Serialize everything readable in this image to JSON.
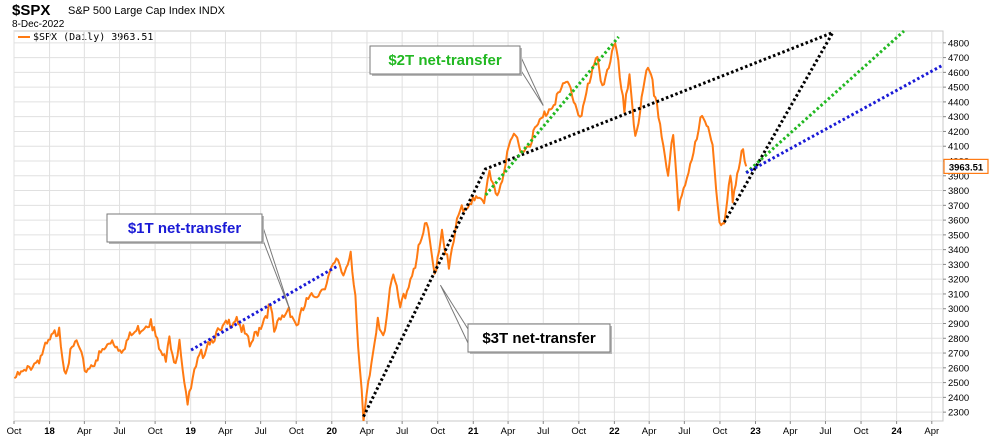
{
  "header": {
    "symbol": "$SPX",
    "name": "S&P 500 Large Cap Index",
    "exchange": "INDX",
    "date": "8-Dec-2022"
  },
  "legend": {
    "label": "$SPX (Daily) 3963.51",
    "color": "#ff7a12"
  },
  "last_value_label": "3963.51",
  "colors": {
    "price": "#ff7a12",
    "one_t": "#1a1ad6",
    "two_t": "#22b822",
    "three_t": "#000000",
    "grid": "#e0e0e0",
    "label_border": "#888888"
  },
  "chart_data": {
    "type": "line",
    "title": "",
    "xlabel": "",
    "ylabel": "",
    "x_range": [
      "2017-10-01",
      "2024-04-30"
    ],
    "ylim": [
      2240,
      4880
    ],
    "y_ticks": [
      2300,
      2400,
      2500,
      2600,
      2700,
      2800,
      2900,
      3000,
      3100,
      3200,
      3300,
      3400,
      3500,
      3600,
      3700,
      3800,
      3900,
      4000,
      4100,
      4200,
      4300,
      4400,
      4500,
      4600,
      4700,
      4800
    ],
    "x_ticks": [
      {
        "label": "Oct",
        "date": "2017-10-01",
        "bold": false
      },
      {
        "label": "18",
        "date": "2018-01-01",
        "bold": true
      },
      {
        "label": "Apr",
        "date": "2018-04-01",
        "bold": false
      },
      {
        "label": "Jul",
        "date": "2018-07-01",
        "bold": false
      },
      {
        "label": "Oct",
        "date": "2018-10-01",
        "bold": false
      },
      {
        "label": "19",
        "date": "2019-01-01",
        "bold": true
      },
      {
        "label": "Apr",
        "date": "2019-04-01",
        "bold": false
      },
      {
        "label": "Jul",
        "date": "2019-07-01",
        "bold": false
      },
      {
        "label": "Oct",
        "date": "2019-10-01",
        "bold": false
      },
      {
        "label": "20",
        "date": "2020-01-01",
        "bold": true
      },
      {
        "label": "Apr",
        "date": "2020-04-01",
        "bold": false
      },
      {
        "label": "Jul",
        "date": "2020-07-01",
        "bold": false
      },
      {
        "label": "Oct",
        "date": "2020-10-01",
        "bold": false
      },
      {
        "label": "21",
        "date": "2021-01-01",
        "bold": true
      },
      {
        "label": "Apr",
        "date": "2021-04-01",
        "bold": false
      },
      {
        "label": "Jul",
        "date": "2021-07-01",
        "bold": false
      },
      {
        "label": "Oct",
        "date": "2021-10-01",
        "bold": false
      },
      {
        "label": "22",
        "date": "2022-01-01",
        "bold": true
      },
      {
        "label": "Apr",
        "date": "2022-04-01",
        "bold": false
      },
      {
        "label": "Jul",
        "date": "2022-07-01",
        "bold": false
      },
      {
        "label": "Oct",
        "date": "2022-10-01",
        "bold": false
      },
      {
        "label": "23",
        "date": "2023-01-01",
        "bold": true
      },
      {
        "label": "Apr",
        "date": "2023-04-01",
        "bold": false
      },
      {
        "label": "Jul",
        "date": "2023-07-01",
        "bold": false
      },
      {
        "label": "Oct",
        "date": "2023-10-01",
        "bold": false
      },
      {
        "label": "24",
        "date": "2024-01-01",
        "bold": true
      },
      {
        "label": "Apr",
        "date": "2024-04-01",
        "bold": false
      }
    ],
    "grid": true,
    "legend_position": "top-left",
    "series": [
      {
        "name": "$SPX (Daily) 3963.51",
        "style": "line",
        "points": [
          [
            "2017-10-02",
            2530
          ],
          [
            "2017-11-01",
            2580
          ],
          [
            "2017-12-01",
            2650
          ],
          [
            "2018-01-26",
            2872
          ],
          [
            "2018-02-08",
            2580
          ],
          [
            "2018-03-12",
            2786
          ],
          [
            "2018-04-02",
            2580
          ],
          [
            "2018-05-01",
            2650
          ],
          [
            "2018-06-12",
            2786
          ],
          [
            "2018-07-02",
            2720
          ],
          [
            "2018-08-01",
            2820
          ],
          [
            "2018-09-20",
            2930
          ],
          [
            "2018-10-11",
            2728
          ],
          [
            "2018-10-29",
            2641
          ],
          [
            "2018-11-07",
            2813
          ],
          [
            "2018-11-23",
            2632
          ],
          [
            "2018-12-03",
            2790
          ],
          [
            "2018-12-24",
            2351
          ],
          [
            "2019-01-15",
            2610
          ],
          [
            "2019-02-15",
            2775
          ],
          [
            "2019-03-21",
            2854
          ],
          [
            "2019-04-30",
            2945
          ],
          [
            "2019-06-03",
            2744
          ],
          [
            "2019-07-26",
            3025
          ],
          [
            "2019-08-05",
            2844
          ],
          [
            "2019-09-12",
            3009
          ],
          [
            "2019-10-02",
            2887
          ],
          [
            "2019-11-01",
            3066
          ],
          [
            "2019-12-02",
            3113
          ],
          [
            "2020-01-17",
            3330
          ],
          [
            "2020-01-31",
            3225
          ],
          [
            "2020-02-19",
            3386
          ],
          [
            "2020-03-02",
            3090
          ],
          [
            "2020-03-09",
            2746
          ],
          [
            "2020-03-23",
            2237
          ],
          [
            "2020-04-29",
            2939
          ],
          [
            "2020-05-13",
            2820
          ],
          [
            "2020-06-08",
            3232
          ],
          [
            "2020-06-26",
            3009
          ],
          [
            "2020-07-31",
            3271
          ],
          [
            "2020-09-02",
            3580
          ],
          [
            "2020-09-23",
            3237
          ],
          [
            "2020-10-12",
            3534
          ],
          [
            "2020-10-30",
            3270
          ],
          [
            "2020-11-24",
            3635
          ],
          [
            "2020-12-31",
            3756
          ],
          [
            "2021-01-29",
            3714
          ],
          [
            "2021-02-12",
            3934
          ],
          [
            "2021-03-04",
            3768
          ],
          [
            "2021-04-16",
            4185
          ],
          [
            "2021-05-12",
            4063
          ],
          [
            "2021-06-30",
            4297
          ],
          [
            "2021-08-13",
            4468
          ],
          [
            "2021-09-02",
            4537
          ],
          [
            "2021-10-04",
            4300
          ],
          [
            "2021-11-18",
            4705
          ],
          [
            "2021-12-01",
            4513
          ],
          [
            "2022-01-03",
            4796
          ],
          [
            "2022-01-27",
            4326
          ],
          [
            "2022-02-09",
            4587
          ],
          [
            "2022-02-24",
            4170
          ],
          [
            "2022-03-29",
            4631
          ],
          [
            "2022-04-21",
            4393
          ],
          [
            "2022-05-20",
            3900
          ],
          [
            "2022-06-02",
            4176
          ],
          [
            "2022-06-16",
            3666
          ],
          [
            "2022-07-29",
            4130
          ],
          [
            "2022-08-16",
            4305
          ],
          [
            "2022-09-12",
            4110
          ],
          [
            "2022-09-30",
            3585
          ],
          [
            "2022-10-12",
            3577
          ],
          [
            "2022-10-28",
            3901
          ],
          [
            "2022-11-03",
            3720
          ],
          [
            "2022-11-30",
            4080
          ],
          [
            "2022-12-08",
            3963.51
          ]
        ]
      },
      {
        "name": "",
        "style": "dotted",
        "color_key": "one_t",
        "points": [
          [
            "2019-01-02",
            2720
          ],
          [
            "2020-01-13",
            3285
          ]
        ]
      },
      {
        "name": "",
        "style": "dotted",
        "color_key": "three_t",
        "points": [
          [
            "2020-03-23",
            2270
          ],
          [
            "2021-02-01",
            3945
          ],
          [
            "2023-07-20",
            4870
          ]
        ]
      },
      {
        "name": "",
        "style": "dotted",
        "color_key": "two_t",
        "points": [
          [
            "2021-02-02",
            3770
          ],
          [
            "2022-01-12",
            4840
          ]
        ]
      },
      {
        "name": "",
        "style": "dotted",
        "color_key": "three_t",
        "points": [
          [
            "2022-10-12",
            3585
          ],
          [
            "2023-07-20",
            4870
          ]
        ]
      },
      {
        "name": "",
        "style": "dotted",
        "color_key": "two_t",
        "points": [
          [
            "2022-12-08",
            3920
          ],
          [
            "2024-01-20",
            4880
          ]
        ]
      },
      {
        "name": "",
        "style": "dotted",
        "color_key": "one_t",
        "points": [
          [
            "2022-12-08",
            3920
          ],
          [
            "2024-04-30",
            4650
          ]
        ]
      }
    ],
    "annotations": [
      {
        "text": "$1T net-transfer",
        "color_key": "one_t",
        "target": [
          "2019-07-01",
          2990
        ]
      },
      {
        "text": "$2T net-transfer",
        "color_key": "two_t",
        "target": [
          "2021-07-01",
          4375
        ]
      },
      {
        "text": "$3T net-transfer",
        "color_key": "three_t",
        "target": [
          "2020-10-08",
          3160
        ]
      }
    ]
  }
}
